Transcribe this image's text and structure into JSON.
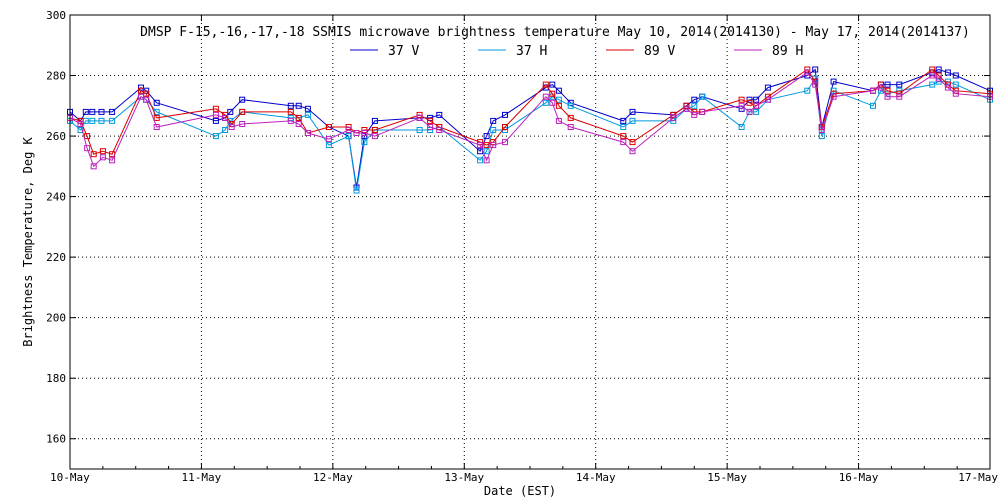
{
  "chart_data": {
    "type": "line",
    "title": "DMSP F-15,-16,-17,-18 SSMIS microwave brightness temperature May 10, 2014(2014130) - May 17, 2014(2014137)",
    "xlabel": "Date (EST)",
    "ylabel": "Brightness Temperature, Deg K",
    "xlim": [
      0,
      7
    ],
    "ylim": [
      150,
      300
    ],
    "x_ticks": [
      {
        "value": 0,
        "label": "10-May"
      },
      {
        "value": 1,
        "label": "11-May"
      },
      {
        "value": 2,
        "label": "12-May"
      },
      {
        "value": 3,
        "label": "13-May"
      },
      {
        "value": 4,
        "label": "14-May"
      },
      {
        "value": 5,
        "label": "15-May"
      },
      {
        "value": 6,
        "label": "16-May"
      },
      {
        "value": 7,
        "label": "17-May"
      }
    ],
    "y_ticks": [
      160,
      180,
      200,
      220,
      240,
      260,
      280,
      300
    ],
    "grid": true,
    "legend_position": "top-center",
    "series": [
      {
        "name": "37 V",
        "color": "#0000cc",
        "x": [
          0.0,
          0.08,
          0.12,
          0.17,
          0.24,
          0.32,
          0.54,
          0.58,
          0.66,
          1.11,
          1.18,
          1.22,
          1.31,
          1.68,
          1.74,
          1.81,
          1.97,
          2.12,
          2.18,
          2.24,
          2.32,
          2.66,
          2.74,
          2.81,
          3.12,
          3.17,
          3.22,
          3.31,
          3.62,
          3.67,
          3.72,
          3.81,
          4.21,
          4.28,
          4.59,
          4.69,
          4.75,
          4.81,
          5.11,
          5.17,
          5.22,
          5.31,
          5.61,
          5.67,
          5.72,
          5.81,
          6.11,
          6.17,
          6.22,
          6.31,
          6.56,
          6.61,
          6.68,
          6.74,
          7.0
        ],
        "values": [
          268,
          265,
          268,
          268,
          268,
          268,
          276,
          275,
          271,
          265,
          266,
          268,
          272,
          270,
          270,
          269,
          263,
          260,
          243,
          260,
          265,
          266,
          266,
          267,
          255,
          260,
          265,
          267,
          276,
          277,
          275,
          271,
          265,
          268,
          267,
          270,
          272,
          273,
          269,
          272,
          272,
          276,
          280,
          282,
          263,
          278,
          275,
          277,
          277,
          277,
          281,
          282,
          281,
          280,
          275
        ]
      },
      {
        "name": "37 H",
        "color": "#0099dd",
        "x": [
          0.0,
          0.08,
          0.12,
          0.17,
          0.24,
          0.32,
          0.54,
          0.58,
          0.66,
          1.11,
          1.18,
          1.22,
          1.31,
          1.68,
          1.74,
          1.81,
          1.97,
          2.12,
          2.18,
          2.24,
          2.32,
          2.66,
          2.74,
          2.81,
          3.12,
          3.17,
          3.22,
          3.31,
          3.62,
          3.67,
          3.72,
          3.81,
          4.21,
          4.28,
          4.59,
          4.69,
          4.75,
          4.81,
          5.11,
          5.17,
          5.22,
          5.31,
          5.61,
          5.67,
          5.72,
          5.81,
          6.11,
          6.17,
          6.22,
          6.31,
          6.56,
          6.61,
          6.68,
          6.74,
          7.0
        ],
        "values": [
          265,
          262,
          265,
          265,
          265,
          265,
          273,
          272,
          268,
          260,
          262,
          265,
          268,
          266,
          266,
          267,
          257,
          260,
          242,
          258,
          262,
          262,
          262,
          263,
          252,
          255,
          262,
          262,
          271,
          273,
          272,
          270,
          263,
          265,
          265,
          269,
          270,
          273,
          263,
          268,
          268,
          272,
          275,
          279,
          260,
          275,
          270,
          275,
          274,
          275,
          277,
          278,
          278,
          277,
          272
        ]
      },
      {
        "name": "89 V",
        "color": "#dd0000",
        "x": [
          0.0,
          0.08,
          0.13,
          0.18,
          0.25,
          0.32,
          0.54,
          0.58,
          0.66,
          1.11,
          1.18,
          1.23,
          1.31,
          1.68,
          1.74,
          1.81,
          1.97,
          2.12,
          2.18,
          2.24,
          2.32,
          2.66,
          2.74,
          2.81,
          3.12,
          3.17,
          3.22,
          3.31,
          3.62,
          3.67,
          3.72,
          3.81,
          4.21,
          4.28,
          4.59,
          4.69,
          4.75,
          4.81,
          5.11,
          5.17,
          5.22,
          5.31,
          5.61,
          5.67,
          5.72,
          5.81,
          6.11,
          6.17,
          6.22,
          6.31,
          6.56,
          6.61,
          6.68,
          6.74,
          7.0
        ],
        "values": [
          266,
          265,
          260,
          254,
          255,
          254,
          275,
          274,
          266,
          269,
          267,
          264,
          268,
          268,
          266,
          261,
          263,
          263,
          261,
          262,
          262,
          267,
          265,
          263,
          258,
          257,
          258,
          263,
          277,
          274,
          270,
          266,
          260,
          258,
          267,
          270,
          268,
          268,
          272,
          271,
          270,
          273,
          282,
          278,
          263,
          274,
          275,
          277,
          275,
          274,
          282,
          280,
          277,
          275,
          274
        ]
      },
      {
        "name": "89 H",
        "color": "#bb22bb",
        "x": [
          0.0,
          0.08,
          0.13,
          0.18,
          0.25,
          0.32,
          0.54,
          0.58,
          0.66,
          1.11,
          1.18,
          1.23,
          1.31,
          1.68,
          1.74,
          1.81,
          1.97,
          2.12,
          2.18,
          2.24,
          2.32,
          2.66,
          2.74,
          2.81,
          3.12,
          3.17,
          3.22,
          3.31,
          3.62,
          3.67,
          3.72,
          3.81,
          4.21,
          4.28,
          4.59,
          4.69,
          4.75,
          4.81,
          5.11,
          5.17,
          5.22,
          5.31,
          5.61,
          5.67,
          5.72,
          5.81,
          6.11,
          6.17,
          6.22,
          6.31,
          6.56,
          6.61,
          6.68,
          6.74,
          7.0
        ],
        "values": [
          266,
          264,
          256,
          250,
          253,
          252,
          273,
          272,
          263,
          267,
          266,
          263,
          264,
          265,
          264,
          261,
          259,
          262,
          261,
          261,
          260,
          266,
          263,
          262,
          257,
          252,
          257,
          258,
          273,
          271,
          265,
          263,
          258,
          255,
          266,
          269,
          267,
          268,
          270,
          268,
          270,
          272,
          281,
          277,
          262,
          273,
          275,
          276,
          273,
          273,
          280,
          279,
          276,
          274,
          273
        ]
      }
    ]
  }
}
